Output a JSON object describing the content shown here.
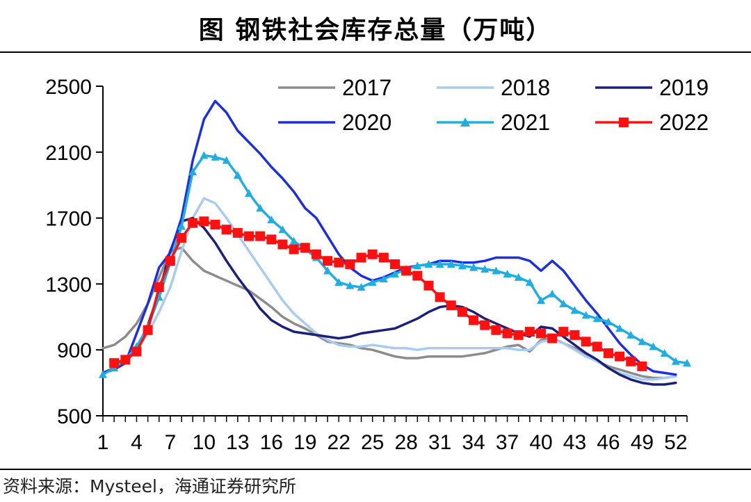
{
  "header": {
    "title": "图  钢铁社会库存总量（万吨）"
  },
  "footer": {
    "source": "资料来源：Mysteel，海通证券研究所"
  },
  "chart_data": {
    "type": "line",
    "title": "图  钢铁社会库存总量（万吨）",
    "unit": "万吨",
    "xlabel": "",
    "ylabel": "",
    "ylim": [
      500,
      2500
    ],
    "yticks": [
      500,
      900,
      1300,
      1700,
      2100,
      2500
    ],
    "xlim": [
      1,
      53
    ],
    "xticks": [
      1,
      4,
      7,
      10,
      13,
      16,
      19,
      22,
      25,
      28,
      31,
      34,
      37,
      40,
      43,
      46,
      49,
      52
    ],
    "grid": false,
    "legend_position": "top-right",
    "series": [
      {
        "name": "2017",
        "color": "#8c8c8c",
        "marker": "none",
        "points": [
          [
            1,
            910
          ],
          [
            2,
            930
          ],
          [
            3,
            980
          ],
          [
            4,
            1060
          ],
          [
            5,
            1180
          ],
          [
            6,
            1340
          ],
          [
            7,
            1500
          ],
          [
            8,
            1520
          ],
          [
            9,
            1440
          ],
          [
            10,
            1380
          ],
          [
            11,
            1350
          ],
          [
            12,
            1320
          ],
          [
            13,
            1290
          ],
          [
            14,
            1260
          ],
          [
            15,
            1210
          ],
          [
            16,
            1160
          ],
          [
            17,
            1100
          ],
          [
            18,
            1060
          ],
          [
            19,
            1030
          ],
          [
            20,
            990
          ],
          [
            21,
            950
          ],
          [
            22,
            940
          ],
          [
            23,
            930
          ],
          [
            24,
            910
          ],
          [
            25,
            900
          ],
          [
            26,
            880
          ],
          [
            27,
            860
          ],
          [
            28,
            850
          ],
          [
            29,
            850
          ],
          [
            30,
            860
          ],
          [
            31,
            860
          ],
          [
            32,
            860
          ],
          [
            33,
            860
          ],
          [
            34,
            870
          ],
          [
            35,
            880
          ],
          [
            36,
            900
          ],
          [
            37,
            920
          ],
          [
            38,
            930
          ],
          [
            39,
            890
          ],
          [
            40,
            960
          ],
          [
            41,
            970
          ],
          [
            42,
            940
          ],
          [
            43,
            910
          ],
          [
            44,
            870
          ],
          [
            45,
            830
          ],
          [
            46,
            800
          ],
          [
            47,
            780
          ],
          [
            48,
            760
          ],
          [
            49,
            740
          ],
          [
            50,
            730
          ],
          [
            51,
            730
          ],
          [
            52,
            740
          ]
        ]
      },
      {
        "name": "2018",
        "color": "#a8ccf0",
        "marker": "none",
        "points": [
          [
            1,
            760
          ],
          [
            2,
            790
          ],
          [
            3,
            820
          ],
          [
            4,
            900
          ],
          [
            5,
            1000
          ],
          [
            6,
            1130
          ],
          [
            7,
            1280
          ],
          [
            8,
            1500
          ],
          [
            9,
            1700
          ],
          [
            10,
            1820
          ],
          [
            11,
            1790
          ],
          [
            12,
            1700
          ],
          [
            13,
            1600
          ],
          [
            14,
            1500
          ],
          [
            15,
            1400
          ],
          [
            16,
            1300
          ],
          [
            17,
            1200
          ],
          [
            18,
            1120
          ],
          [
            19,
            1060
          ],
          [
            20,
            1000
          ],
          [
            21,
            960
          ],
          [
            22,
            930
          ],
          [
            23,
            920
          ],
          [
            24,
            920
          ],
          [
            25,
            930
          ],
          [
            26,
            920
          ],
          [
            27,
            910
          ],
          [
            28,
            910
          ],
          [
            29,
            900
          ],
          [
            30,
            910
          ],
          [
            31,
            910
          ],
          [
            32,
            910
          ],
          [
            33,
            910
          ],
          [
            34,
            910
          ],
          [
            35,
            910
          ],
          [
            36,
            910
          ],
          [
            37,
            910
          ],
          [
            38,
            900
          ],
          [
            39,
            900
          ],
          [
            40,
            950
          ],
          [
            41,
            960
          ],
          [
            42,
            940
          ],
          [
            43,
            900
          ],
          [
            44,
            860
          ],
          [
            45,
            830
          ],
          [
            46,
            790
          ],
          [
            47,
            760
          ],
          [
            48,
            740
          ],
          [
            49,
            720
          ],
          [
            50,
            720
          ],
          [
            51,
            730
          ],
          [
            52,
            740
          ]
        ]
      },
      {
        "name": "2019",
        "color": "#1a1f7a",
        "marker": "none",
        "points": [
          [
            1,
            760
          ],
          [
            2,
            790
          ],
          [
            3,
            830
          ],
          [
            4,
            900
          ],
          [
            5,
            1050
          ],
          [
            6,
            1250
          ],
          [
            7,
            1500
          ],
          [
            8,
            1680
          ],
          [
            9,
            1700
          ],
          [
            10,
            1640
          ],
          [
            11,
            1550
          ],
          [
            12,
            1440
          ],
          [
            13,
            1340
          ],
          [
            14,
            1250
          ],
          [
            15,
            1150
          ],
          [
            16,
            1080
          ],
          [
            17,
            1040
          ],
          [
            18,
            1010
          ],
          [
            19,
            1000
          ],
          [
            20,
            990
          ],
          [
            21,
            980
          ],
          [
            22,
            970
          ],
          [
            23,
            980
          ],
          [
            24,
            1000
          ],
          [
            25,
            1010
          ],
          [
            26,
            1020
          ],
          [
            27,
            1030
          ],
          [
            28,
            1060
          ],
          [
            29,
            1090
          ],
          [
            30,
            1130
          ],
          [
            31,
            1160
          ],
          [
            32,
            1170
          ],
          [
            33,
            1160
          ],
          [
            34,
            1130
          ],
          [
            35,
            1090
          ],
          [
            36,
            1060
          ],
          [
            37,
            1030
          ],
          [
            38,
            1000
          ],
          [
            39,
            980
          ],
          [
            40,
            1040
          ],
          [
            41,
            1030
          ],
          [
            42,
            980
          ],
          [
            43,
            930
          ],
          [
            44,
            880
          ],
          [
            45,
            840
          ],
          [
            46,
            790
          ],
          [
            47,
            750
          ],
          [
            48,
            720
          ],
          [
            49,
            700
          ],
          [
            50,
            690
          ],
          [
            51,
            690
          ],
          [
            52,
            700
          ]
        ]
      },
      {
        "name": "2020",
        "color": "#1c2ee0",
        "marker": "none",
        "points": [
          [
            1,
            760
          ],
          [
            2,
            780
          ],
          [
            3,
            820
          ],
          [
            4,
            1000
          ],
          [
            5,
            1180
          ],
          [
            6,
            1400
          ],
          [
            7,
            1490
          ],
          [
            8,
            1700
          ],
          [
            9,
            2050
          ],
          [
            10,
            2300
          ],
          [
            11,
            2410
          ],
          [
            12,
            2340
          ],
          [
            13,
            2230
          ],
          [
            14,
            2160
          ],
          [
            15,
            2090
          ],
          [
            16,
            2010
          ],
          [
            17,
            1940
          ],
          [
            18,
            1860
          ],
          [
            19,
            1760
          ],
          [
            20,
            1700
          ],
          [
            21,
            1590
          ],
          [
            22,
            1480
          ],
          [
            23,
            1400
          ],
          [
            24,
            1350
          ],
          [
            25,
            1320
          ],
          [
            26,
            1340
          ],
          [
            27,
            1370
          ],
          [
            28,
            1400
          ],
          [
            29,
            1410
          ],
          [
            30,
            1420
          ],
          [
            31,
            1440
          ],
          [
            32,
            1440
          ],
          [
            33,
            1430
          ],
          [
            34,
            1430
          ],
          [
            35,
            1440
          ],
          [
            36,
            1460
          ],
          [
            37,
            1460
          ],
          [
            38,
            1460
          ],
          [
            39,
            1440
          ],
          [
            40,
            1380
          ],
          [
            41,
            1440
          ],
          [
            42,
            1380
          ],
          [
            43,
            1290
          ],
          [
            44,
            1200
          ],
          [
            45,
            1120
          ],
          [
            46,
            1030
          ],
          [
            47,
            940
          ],
          [
            48,
            870
          ],
          [
            49,
            810
          ],
          [
            50,
            770
          ],
          [
            51,
            760
          ],
          [
            52,
            750
          ]
        ]
      },
      {
        "name": "2021",
        "color": "#20aee0",
        "marker": "triangle",
        "points": [
          [
            1,
            750
          ],
          [
            2,
            790
          ],
          [
            3,
            840
          ],
          [
            4,
            920
          ],
          [
            5,
            1040
          ],
          [
            6,
            1220
          ],
          [
            7,
            1430
          ],
          [
            8,
            1650
          ],
          [
            9,
            1980
          ],
          [
            10,
            2080
          ],
          [
            11,
            2070
          ],
          [
            12,
            2050
          ],
          [
            13,
            1960
          ],
          [
            14,
            1850
          ],
          [
            15,
            1760
          ],
          [
            16,
            1690
          ],
          [
            17,
            1630
          ],
          [
            18,
            1560
          ],
          [
            19,
            1510
          ],
          [
            20,
            1460
          ],
          [
            21,
            1380
          ],
          [
            22,
            1310
          ],
          [
            23,
            1290
          ],
          [
            24,
            1280
          ],
          [
            25,
            1310
          ],
          [
            26,
            1330
          ],
          [
            27,
            1360
          ],
          [
            28,
            1390
          ],
          [
            29,
            1410
          ],
          [
            30,
            1420
          ],
          [
            31,
            1420
          ],
          [
            32,
            1420
          ],
          [
            33,
            1410
          ],
          [
            34,
            1400
          ],
          [
            35,
            1390
          ],
          [
            36,
            1380
          ],
          [
            37,
            1360
          ],
          [
            38,
            1340
          ],
          [
            39,
            1310
          ],
          [
            40,
            1200
          ],
          [
            41,
            1240
          ],
          [
            42,
            1180
          ],
          [
            43,
            1140
          ],
          [
            44,
            1110
          ],
          [
            45,
            1090
          ],
          [
            46,
            1070
          ],
          [
            47,
            1030
          ],
          [
            48,
            990
          ],
          [
            49,
            950
          ],
          [
            50,
            920
          ],
          [
            51,
            880
          ],
          [
            52,
            830
          ],
          [
            53,
            820
          ]
        ]
      },
      {
        "name": "2022",
        "color": "#ff1010",
        "marker": "square",
        "points": [
          [
            2,
            820
          ],
          [
            3,
            840
          ],
          [
            4,
            890
          ],
          [
            5,
            1020
          ],
          [
            6,
            1280
          ],
          [
            7,
            1440
          ],
          [
            8,
            1580
          ],
          [
            9,
            1670
          ],
          [
            10,
            1680
          ],
          [
            11,
            1660
          ],
          [
            12,
            1630
          ],
          [
            13,
            1610
          ],
          [
            14,
            1590
          ],
          [
            15,
            1590
          ],
          [
            16,
            1570
          ],
          [
            17,
            1540
          ],
          [
            18,
            1510
          ],
          [
            19,
            1520
          ],
          [
            20,
            1480
          ],
          [
            21,
            1440
          ],
          [
            22,
            1430
          ],
          [
            23,
            1420
          ],
          [
            24,
            1460
          ],
          [
            25,
            1480
          ],
          [
            26,
            1460
          ],
          [
            27,
            1420
          ],
          [
            28,
            1380
          ],
          [
            29,
            1350
          ],
          [
            30,
            1290
          ],
          [
            31,
            1220
          ],
          [
            32,
            1170
          ],
          [
            33,
            1130
          ],
          [
            34,
            1080
          ],
          [
            35,
            1050
          ],
          [
            36,
            1020
          ],
          [
            37,
            1000
          ],
          [
            38,
            990
          ],
          [
            39,
            1010
          ],
          [
            40,
            1000
          ],
          [
            41,
            970
          ],
          [
            42,
            1010
          ],
          [
            43,
            990
          ],
          [
            44,
            950
          ],
          [
            45,
            920
          ],
          [
            46,
            880
          ],
          [
            47,
            860
          ],
          [
            48,
            830
          ],
          [
            49,
            800
          ]
        ]
      }
    ]
  }
}
